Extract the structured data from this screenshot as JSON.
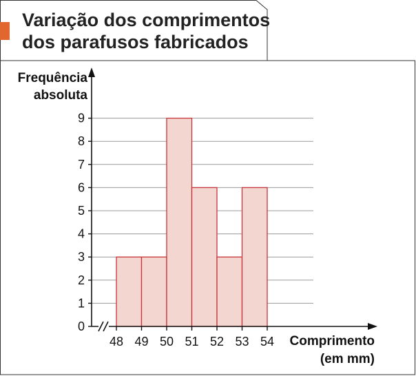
{
  "title_lines": [
    "Variação dos comprimentos",
    "dos parafusos fabricados"
  ],
  "colors": {
    "bar_fill": "#f2d6cf",
    "bar_stroke": "#c8343a",
    "accent_tab": "#e2672e",
    "grid": "#9a9a9a",
    "axis": "#111111"
  },
  "chart_data": {
    "type": "bar",
    "subtype": "histogram",
    "title": "Variação dos comprimentos dos parafusos fabricados",
    "ylabel_lines": [
      "Frequência",
      "absoluta"
    ],
    "xlabel_lines": [
      "Comprimento",
      "(em mm)"
    ],
    "bins": [
      {
        "from": 48,
        "to": 49,
        "value": 3
      },
      {
        "from": 49,
        "to": 50,
        "value": 3
      },
      {
        "from": 50,
        "to": 51,
        "value": 9
      },
      {
        "from": 51,
        "to": 52,
        "value": 6
      },
      {
        "from": 52,
        "to": 53,
        "value": 3
      },
      {
        "from": 53,
        "to": 54,
        "value": 6
      }
    ],
    "x_ticks": [
      "48",
      "49",
      "50",
      "51",
      "52",
      "53",
      "54"
    ],
    "y_ticks": [
      "0",
      "1",
      "2",
      "3",
      "4",
      "5",
      "6",
      "7",
      "8",
      "9"
    ],
    "xlim": [
      48,
      54
    ],
    "ylim": [
      0,
      9
    ],
    "axis_break": true,
    "grid": true
  }
}
